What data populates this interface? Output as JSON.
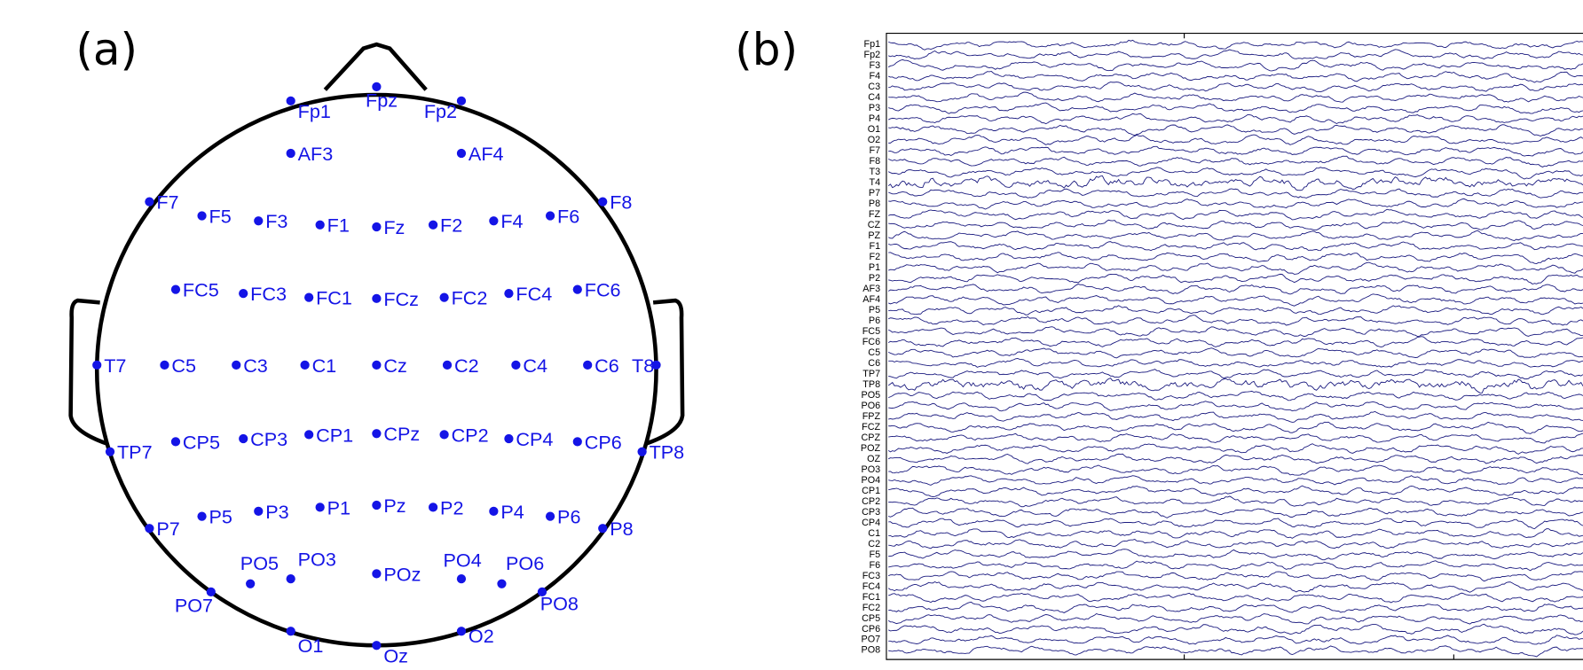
{
  "panel_a": {
    "label": "(a)",
    "electrodes": [
      "Fp1",
      "Fpz",
      "Fp2",
      "AF3",
      "AF4",
      "F7",
      "F5",
      "F3",
      "F1",
      "Fz",
      "F2",
      "F4",
      "F6",
      "F8",
      "FC5",
      "FC3",
      "FC1",
      "FCz",
      "FC2",
      "FC4",
      "FC6",
      "T7",
      "C5",
      "C3",
      "C1",
      "Cz",
      "C2",
      "C4",
      "C6",
      "T8",
      "TP7",
      "CP5",
      "CP3",
      "CP1",
      "CPz",
      "CP2",
      "CP4",
      "CP6",
      "TP8",
      "P7",
      "P5",
      "P3",
      "P1",
      "Pz",
      "P2",
      "P4",
      "P6",
      "P8",
      "PO7",
      "PO5",
      "PO3",
      "POz",
      "PO4",
      "PO6",
      "PO8",
      "O1",
      "Oz",
      "O2"
    ]
  },
  "panel_b": {
    "label": "(b)",
    "channels": [
      "Fp1",
      "Fp2",
      "F3",
      "F4",
      "C3",
      "C4",
      "P3",
      "P4",
      "O1",
      "O2",
      "F7",
      "F8",
      "T3",
      "T4",
      "P7",
      "P8",
      "FZ",
      "CZ",
      "PZ",
      "F1",
      "F2",
      "P1",
      "P2",
      "AF3",
      "AF4",
      "P5",
      "P6",
      "FC5",
      "FC6",
      "C5",
      "C6",
      "TP7",
      "TP8",
      "PO5",
      "PO6",
      "FPZ",
      "FCZ",
      "CPZ",
      "POZ",
      "OZ",
      "PO3",
      "PO4",
      "CP1",
      "CP2",
      "CP3",
      "CP4",
      "C1",
      "C2",
      "F5",
      "F6",
      "FC3",
      "FC4",
      "FC1",
      "FC2",
      "CP5",
      "CP6",
      "PO7",
      "PO8"
    ]
  }
}
